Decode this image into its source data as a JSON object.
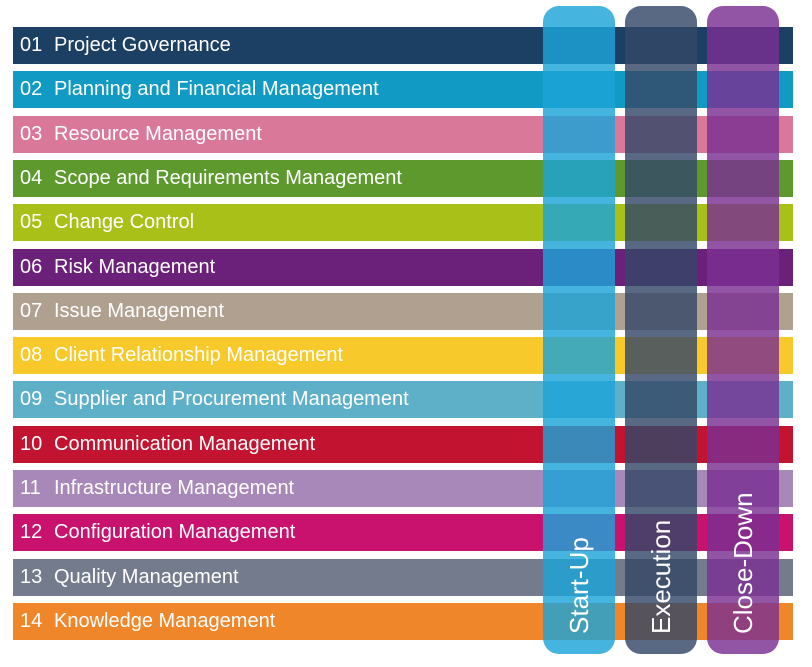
{
  "areas": [
    {
      "num": "01",
      "label": "Project Governance",
      "color": "#1c3f64"
    },
    {
      "num": "02",
      "label": "Planning and Financial Management",
      "color": "#119ac3"
    },
    {
      "num": "03",
      "label": "Resource Management",
      "color": "#d97899"
    },
    {
      "num": "04",
      "label": "Scope and Requirements Management",
      "color": "#5e992e"
    },
    {
      "num": "05",
      "label": "Change Control",
      "color": "#a8c018"
    },
    {
      "num": "06",
      "label": "Risk Management",
      "color": "#6b207a"
    },
    {
      "num": "07",
      "label": "Issue Management",
      "color": "#b0a090"
    },
    {
      "num": "08",
      "label": "Client Relationship Management",
      "color": "#f8c92a"
    },
    {
      "num": "09",
      "label": "Supplier and Procurement Management",
      "color": "#5eb0c8"
    },
    {
      "num": "10",
      "label": "Communication Management",
      "color": "#c21430"
    },
    {
      "num": "11",
      "label": "Infrastructure Management",
      "color": "#a888b8"
    },
    {
      "num": "12",
      "label": "Configuration Management",
      "color": "#c8126d"
    },
    {
      "num": "13",
      "label": "Quality Management",
      "color": "#737b8c"
    },
    {
      "num": "14",
      "label": "Knowledge Management",
      "color": "#f0862a"
    }
  ],
  "phases": [
    {
      "label": "Start-Up",
      "color": "#1ca3d8"
    },
    {
      "label": "Execution",
      "color": "#344868"
    },
    {
      "label": "Close-Down",
      "color": "#7a2f92"
    }
  ]
}
